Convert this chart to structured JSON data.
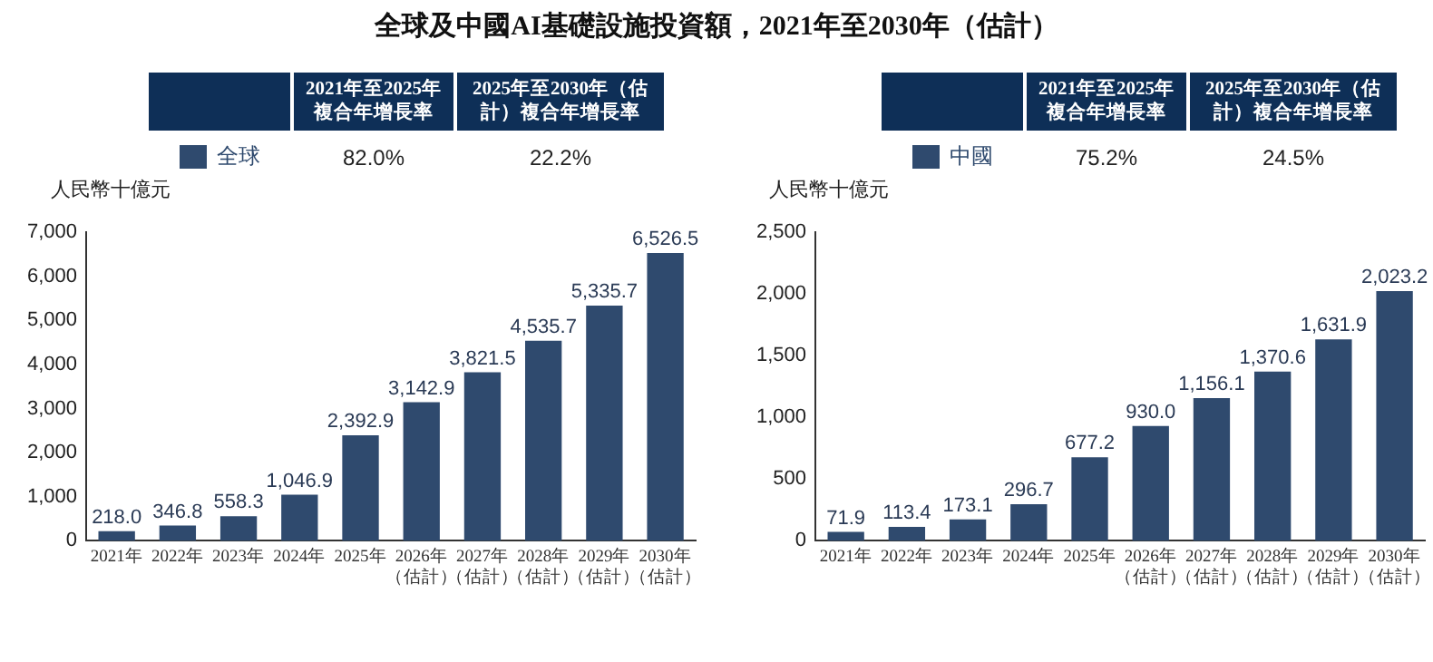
{
  "chart_data": [
    {
      "type": "bar",
      "title": "全球及中國AI基礎設施投資額，2021年至2030年（估計）",
      "ylabel": "人民幣十億元",
      "categories": [
        "2021年",
        "2022年",
        "2023年",
        "2024年",
        "2025年",
        "2026年（估計）",
        "2027年（估計）",
        "2028年（估計）",
        "2029年（估計）",
        "2030年（估計）"
      ],
      "series": [
        {
          "name": "全球",
          "color": "#2f4a6e",
          "values": [
            218.0,
            346.8,
            558.3,
            1046.9,
            2392.9,
            3142.9,
            3821.5,
            4535.7,
            5335.7,
            6526.5
          ],
          "value_labels": [
            "218.0",
            "346.8",
            "558.3",
            "1,046.9",
            "2,392.9",
            "3,142.9",
            "3,821.5",
            "4,535.7",
            "5,335.7",
            "6,526.5"
          ]
        }
      ],
      "ylim": [
        0,
        7000
      ],
      "yticks": [
        {
          "value": 0,
          "label": "0"
        },
        {
          "value": 1000,
          "label": "1,000"
        },
        {
          "value": 2000,
          "label": "2,000"
        },
        {
          "value": 3000,
          "label": "3,000"
        },
        {
          "value": 4000,
          "label": "4,000"
        },
        {
          "value": 5000,
          "label": "5,000"
        },
        {
          "value": 6000,
          "label": "6,000"
        },
        {
          "value": 7000,
          "label": "7,000"
        }
      ],
      "grid": false,
      "legend": "top left",
      "annotations": [
        "2021年至2025年複合年增長率",
        "2025年至2030年（估計）複合年增長率",
        "82.0%",
        "22.2%"
      ]
    },
    {
      "type": "bar",
      "ylabel": "人民幣十億元",
      "categories": [
        "2021年",
        "2022年",
        "2023年",
        "2024年",
        "2025年",
        "2026年（估計）",
        "2027年（估計）",
        "2028年（估計）",
        "2029年（估計）",
        "2030年（估計）"
      ],
      "series": [
        {
          "name": "中國",
          "color": "#2f4a6e",
          "values": [
            71.9,
            113.4,
            173.1,
            296.7,
            677.2,
            930.0,
            1156.1,
            1370.6,
            1631.9,
            2023.2
          ],
          "value_labels": [
            "71.9",
            "113.4",
            "173.1",
            "296.7",
            "677.2",
            "930.0",
            "1,156.1",
            "1,370.6",
            "1,631.9",
            "2,023.2"
          ]
        }
      ],
      "ylim": [
        0,
        2500
      ],
      "yticks": [
        {
          "value": 0,
          "label": "0"
        },
        {
          "value": 500,
          "label": "500"
        },
        {
          "value": 1000,
          "label": "1,000"
        },
        {
          "value": 1500,
          "label": "1,500"
        },
        {
          "value": 2000,
          "label": "2,000"
        },
        {
          "value": 2500,
          "label": "2,500"
        }
      ],
      "grid": false,
      "legend": "top left",
      "annotations": [
        "2021年至2025年複合年增長率",
        "2025年至2030年（估計）複合年增長率",
        "75.2%",
        "24.5%"
      ]
    }
  ]
}
